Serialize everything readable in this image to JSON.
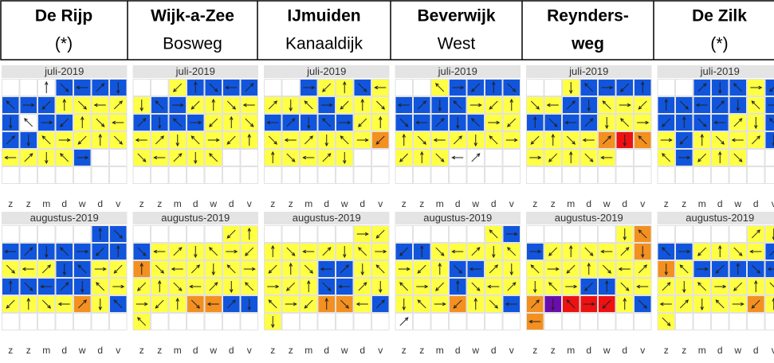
{
  "header": {
    "columns": [
      {
        "title": "De Rijp",
        "subtitle": "(*)"
      },
      {
        "title": "Wijk-a-Zee",
        "subtitle": "Bosweg"
      },
      {
        "title": "IJmuiden",
        "subtitle": "Kanaaldijk"
      },
      {
        "title": "Beverwijk",
        "subtitle": "West"
      },
      {
        "title": "Reynders-",
        "subtitle": "weg"
      },
      {
        "title": "De Zilk",
        "subtitle": "(*)"
      }
    ]
  },
  "weekdays": [
    "z",
    "z",
    "m",
    "d",
    "w",
    "d",
    "v"
  ],
  "months": [
    {
      "label": "juli-2019",
      "panels": [
        [
          "..wbbbb",
          "bbbyyyy",
          "bwbbyyy",
          "bbyyyyy",
          "yyyyb..",
          "......."
        ],
        [
          "..ybbbb",
          "ybbyyyy",
          "bbbbyyy",
          "yyyyyyy",
          "yyyyy..",
          "......."
        ],
        [
          "..byyby",
          "yyybyyy",
          "bbbbbyy",
          "yyyyyyo",
          "yyyyy..",
          "......."
        ],
        [
          "..ybbbb",
          "bbbbyyy",
          "bbbbbyy",
          "yyyyyyy",
          "yyyww..",
          "......."
        ],
        [
          "..ybbbb",
          "yybbyyy",
          "bbbbyyy",
          "yyyyoro",
          "yyyyy..",
          "......."
        ],
        [
          "..bbbyb",
          "bbbbbyb",
          "bbbbyyb",
          "ybyyyyb",
          "ybyyy..",
          "......."
        ]
      ]
    },
    {
      "label": "augustus-2019",
      "panels": [
        [
          ".....bb",
          "bbbbbbb",
          "yyybbyy",
          "bbbbbyy",
          "yyyyoyb",
          "......."
        ],
        [
          ".....yy",
          "byyyyyy",
          "oyyyyyy",
          "yyyyyyy",
          "yyyoobb",
          "y......"
        ],
        [
          ".....yy",
          "yyyyyyy",
          "yyybbyy",
          "yyybbyy",
          "yyyooyb",
          "y......"
        ],
        [
          ".....yb",
          "bbyyyyy",
          "yyybbyy",
          "yyybyyy",
          "yyyoyyb",
          "w......"
        ],
        [
          ".....yo",
          "byyyyyo",
          "yyyyyyy",
          "yyybbyy",
          "oprrryb",
          "o......"
        ],
        [
          ".....yy",
          "bbyyyyb",
          "oybbbbb",
          "yyyyyyy",
          "yyyyyoy",
          "y......"
        ]
      ]
    }
  ]
}
